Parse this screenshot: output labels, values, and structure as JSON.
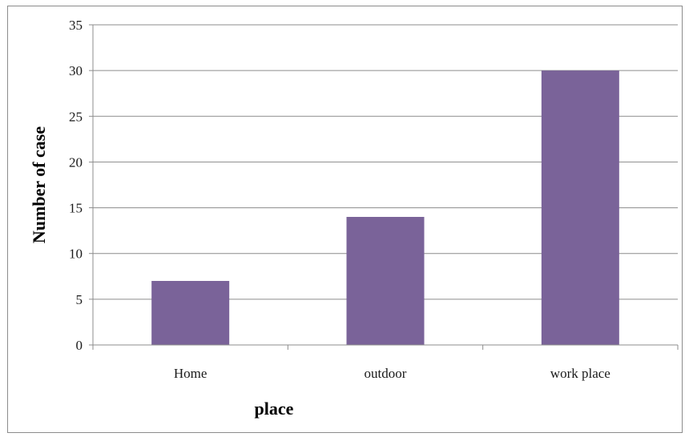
{
  "chart_data": {
    "type": "bar",
    "title": "",
    "xlabel": "place",
    "ylabel": "Number of case",
    "categories": [
      "Home",
      "outdoor",
      "work place"
    ],
    "values": [
      7,
      14,
      30
    ],
    "ylim": [
      0,
      35
    ],
    "yticks": [
      "0",
      "5",
      "10",
      "15",
      "20",
      "25",
      "30",
      "35"
    ],
    "grid": true,
    "legend": "none",
    "bar_color": "#7a6399",
    "grid_color": "#8c8c8c"
  }
}
